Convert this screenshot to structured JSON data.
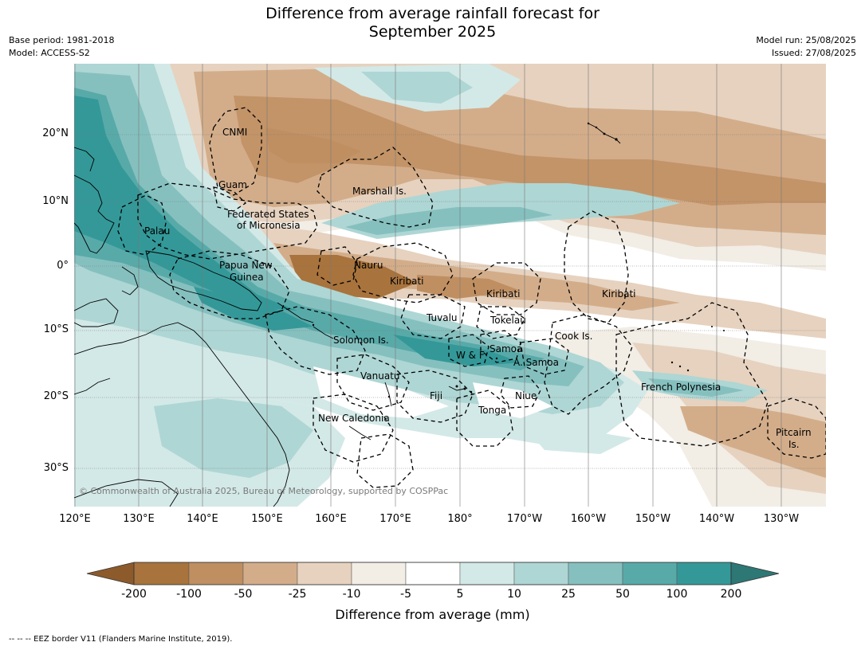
{
  "title_line1": "Difference from average rainfall forecast for",
  "title_line2": "September 2025",
  "base_period": "Base period: 1981-2018",
  "model": "Model: ACCESS-S2",
  "model_run": "Model run: 25/08/2025",
  "issued": "Issued: 27/08/2025",
  "copyright": "© Commonwealth of Australia 2025, Bureau of Meteorology, supported by COSPPac",
  "lat_labels": [
    "20°N",
    "10°N",
    "0°",
    "10°S",
    "20°S",
    "30°S"
  ],
  "lon_labels": [
    "120°E",
    "130°E",
    "140°E",
    "150°E",
    "160°E",
    "170°E",
    "180°",
    "170°W",
    "160°W",
    "150°W",
    "140°W",
    "130°W"
  ],
  "regions": {
    "cnmi": "CNMI",
    "guam": "Guam",
    "marshall": "Marshall Is.",
    "fsm_1": "Federated States",
    "fsm_2": "of Micronesia",
    "palau": "Palau",
    "png_1": "Papua New",
    "png_2": "Guinea",
    "nauru": "Nauru",
    "kiribati_w": "Kiribati",
    "kiribati_c": "Kiribati",
    "kiribati_e": "Kiribati",
    "tuvalu": "Tuvalu",
    "tokelau": "Tokelau",
    "cook": "Cook Is.",
    "solomon": "Solomon Is.",
    "wf": "W & F",
    "samoa": "Samoa",
    "asamoa": "A. Samoa",
    "vanuatu": "Vanuatu",
    "fiji": "Fiji",
    "niue": "Niue",
    "tonga": "Tonga",
    "fp": "French Polynesia",
    "newcal": "New Caledonia",
    "pitcairn_1": "Pitcairn",
    "pitcairn_2": "Is."
  },
  "colorbar": {
    "labels": [
      "-200",
      "-100",
      "-50",
      "-25",
      "-10",
      "-5",
      "5",
      "10",
      "25",
      "50",
      "100",
      "200"
    ],
    "colors": {
      "lt_-200": "#8c5a2b",
      "-200_-100": "#a8733c",
      "-100_-50": "#bf8f62",
      "-50_-25": "#d3ad8a",
      "-25_-10": "#e6d2bf",
      "-10_-5": "#f2ede5",
      "-5_5": "#ffffff",
      "5_10": "#d3e9e7",
      "10_25": "#aed6d4",
      "25_50": "#85c0bf",
      "50_100": "#58aaa9",
      "100_200": "#349898",
      "gt_200": "#2d7775"
    },
    "title": "Difference from average (mm)"
  },
  "footnote": "-- -- -- EEZ border V11 (Flanders Marine Institute, 2019)."
}
